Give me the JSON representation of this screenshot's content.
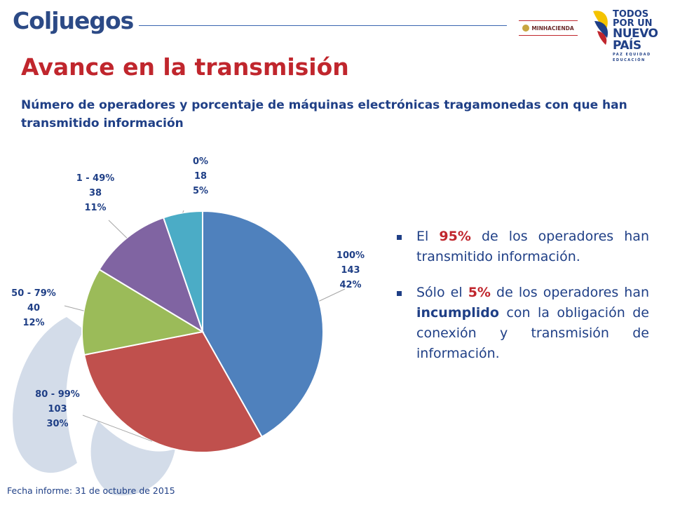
{
  "header": {
    "logo_text": "Coljuegos",
    "ministry_text": "MINHACIENDA",
    "gov_line1": "TODOS POR UN",
    "gov_line2": "NUEVO PAÍS",
    "gov_line3": "PAZ  EQUIDAD  EDUCACIÓN"
  },
  "title": "Avance en la transmisión",
  "subtitle": "Número de operadores y porcentaje de máquinas electrónicas tragamonedas con que han transmitido información",
  "chart_data": {
    "type": "pie",
    "categories": [
      "100%",
      "80 - 99%",
      "50 - 79%",
      "1 - 49%",
      "0%"
    ],
    "values": [
      143,
      103,
      40,
      38,
      18
    ],
    "percent_labels": [
      "42%",
      "30%",
      "12%",
      "11%",
      "5%"
    ],
    "colors": [
      "#4f81bd",
      "#c0504d",
      "#9bbb59",
      "#8064a2",
      "#4bacc6"
    ],
    "start_angle": "12 o'clock",
    "direction": "clockwise",
    "data_labels": "outside with leader lines",
    "legend": "none"
  },
  "bullets": [
    {
      "pre": "El ",
      "highlight": "95%",
      "post": " de los operadores han transmitido información."
    },
    {
      "pre": "Sólo el ",
      "highlight": "5%",
      "mid": " de los operadores han ",
      "bold": "incumplido",
      "post": " con la obligación de conexión y transmisión de información."
    }
  ],
  "footer": "Fecha informe: 31 de octubre de 2015"
}
